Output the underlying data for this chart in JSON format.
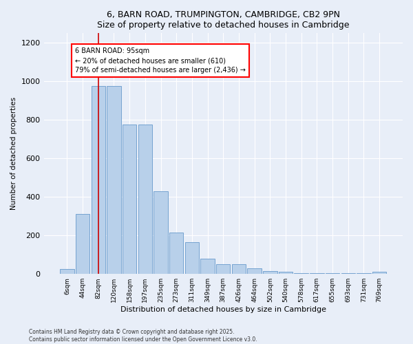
{
  "title": "6, BARN ROAD, TRUMPINGTON, CAMBRIDGE, CB2 9PN",
  "subtitle": "Size of property relative to detached houses in Cambridge",
  "xlabel": "Distribution of detached houses by size in Cambridge",
  "ylabel": "Number of detached properties",
  "categories": [
    "6sqm",
    "44sqm",
    "82sqm",
    "120sqm",
    "158sqm",
    "197sqm",
    "235sqm",
    "273sqm",
    "311sqm",
    "349sqm",
    "387sqm",
    "426sqm",
    "464sqm",
    "502sqm",
    "540sqm",
    "578sqm",
    "617sqm",
    "655sqm",
    "693sqm",
    "731sqm",
    "769sqm"
  ],
  "bar_heights": [
    25,
    310,
    975,
    975,
    775,
    775,
    430,
    215,
    165,
    80,
    50,
    50,
    30,
    15,
    10,
    5,
    5,
    5,
    5,
    5,
    10
  ],
  "bar_color": "#b8d0ea",
  "bar_edge_color": "#6699cc",
  "background_color": "#e8eef8",
  "grid_color": "#ffffff",
  "ylim": [
    0,
    1250
  ],
  "yticks": [
    0,
    200,
    400,
    600,
    800,
    1000,
    1200
  ],
  "annotation_text": "6 BARN ROAD: 95sqm\n← 20% of detached houses are smaller (610)\n79% of semi-detached houses are larger (2,436) →",
  "vline_x": 2.0,
  "vline_color": "#cc0000",
  "footnote1": "Contains HM Land Registry data © Crown copyright and database right 2025.",
  "footnote2": "Contains public sector information licensed under the Open Government Licence v3.0."
}
